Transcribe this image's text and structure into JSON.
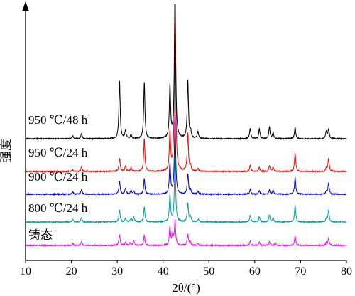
{
  "chart_data": {
    "type": "line",
    "title": "",
    "xlabel": "2θ/(°)",
    "ylabel": "强度",
    "xlim": [
      10,
      80
    ],
    "x_ticks": [
      10,
      20,
      30,
      40,
      50,
      60,
      70,
      80
    ],
    "x_tick_labels": [
      "10",
      "20",
      "30",
      "40",
      "50",
      "60",
      "70",
      "80"
    ],
    "y_ticks": "none",
    "grid": false,
    "legend": "inline labels above each curve (left side)",
    "series": [
      {
        "name": "铸态",
        "color": "#ff00ff",
        "baseline": 0,
        "peaks": [
          [
            20.3,
            0.06
          ],
          [
            22.2,
            0.12
          ],
          [
            30.5,
            0.32
          ],
          [
            31.8,
            0.08
          ],
          [
            32.8,
            0.07
          ],
          [
            33.6,
            0.14
          ],
          [
            35.9,
            0.32
          ],
          [
            41.5,
            0.55
          ],
          [
            42.1,
            0.3
          ],
          [
            42.6,
            0.72
          ],
          [
            45.4,
            0.32
          ],
          [
            45.9,
            0.1
          ],
          [
            47.6,
            0.06
          ],
          [
            59.0,
            0.12
          ],
          [
            61.0,
            0.1
          ],
          [
            63.2,
            0.12
          ],
          [
            64.5,
            0.07
          ],
          [
            68.8,
            0.28
          ],
          [
            75.6,
            0.08
          ],
          [
            76.1,
            0.2
          ]
        ]
      },
      {
        "name": "800 ℃/24 h",
        "color": "#00a0a0",
        "baseline": 1,
        "peaks": [
          [
            20.3,
            0.07
          ],
          [
            22.2,
            0.13
          ],
          [
            30.5,
            0.35
          ],
          [
            31.8,
            0.1
          ],
          [
            33.0,
            0.1
          ],
          [
            33.6,
            0.13
          ],
          [
            35.9,
            0.45
          ],
          [
            41.5,
            0.8
          ],
          [
            42.6,
            1.9
          ],
          [
            45.4,
            0.55
          ],
          [
            46.0,
            0.15
          ],
          [
            47.7,
            0.08
          ],
          [
            59.0,
            0.2
          ],
          [
            61.0,
            0.15
          ],
          [
            63.2,
            0.2
          ],
          [
            64.0,
            0.12
          ],
          [
            68.8,
            0.5
          ],
          [
            75.6,
            0.1
          ],
          [
            76.1,
            0.35
          ]
        ]
      },
      {
        "name": "900 ℃/24 h",
        "color": "#0000d0",
        "baseline": 2,
        "peaks": [
          [
            20.3,
            0.07
          ],
          [
            22.2,
            0.14
          ],
          [
            30.5,
            0.38
          ],
          [
            31.8,
            0.18
          ],
          [
            33.0,
            0.11
          ],
          [
            33.6,
            0.08
          ],
          [
            35.9,
            0.45
          ],
          [
            41.5,
            0.9
          ],
          [
            42.6,
            2.3
          ],
          [
            45.4,
            0.6
          ],
          [
            46.0,
            0.12
          ],
          [
            47.6,
            0.08
          ],
          [
            59.0,
            0.14
          ],
          [
            61.0,
            0.1
          ],
          [
            63.2,
            0.13
          ],
          [
            64.0,
            0.11
          ],
          [
            68.8,
            0.5
          ],
          [
            75.6,
            0.09
          ],
          [
            76.1,
            0.32
          ]
        ]
      },
      {
        "name": "950 ℃/24 h",
        "color": "#ff0000",
        "baseline": 3,
        "peaks": [
          [
            20.3,
            0.05
          ],
          [
            22.2,
            0.14
          ],
          [
            30.5,
            0.38
          ],
          [
            31.8,
            0.16
          ],
          [
            33.0,
            0.12
          ],
          [
            35.9,
            0.95
          ],
          [
            41.5,
            1.15
          ],
          [
            42.6,
            5.1
          ],
          [
            45.4,
            1.1
          ],
          [
            46.0,
            0.15
          ],
          [
            47.6,
            0.08
          ],
          [
            59.0,
            0.18
          ],
          [
            61.0,
            0.12
          ],
          [
            63.2,
            0.18
          ],
          [
            64.0,
            0.13
          ],
          [
            68.8,
            0.55
          ],
          [
            75.6,
            0.1
          ],
          [
            76.1,
            0.38
          ]
        ]
      },
      {
        "name": "950 ℃/48 h",
        "color": "#000000",
        "baseline": 4,
        "peaks": [
          [
            20.3,
            0.08
          ],
          [
            22.2,
            0.16
          ],
          [
            30.5,
            1.7
          ],
          [
            31.8,
            0.24
          ],
          [
            33.0,
            0.12
          ],
          [
            35.9,
            1.65
          ],
          [
            41.5,
            1.55
          ],
          [
            42.6,
            4.6
          ],
          [
            45.4,
            1.7
          ],
          [
            46.0,
            0.2
          ],
          [
            47.6,
            0.2
          ],
          [
            59.0,
            0.31
          ],
          [
            61.0,
            0.28
          ],
          [
            63.2,
            0.34
          ],
          [
            64.0,
            0.18
          ],
          [
            68.8,
            0.34
          ],
          [
            75.6,
            0.22
          ],
          [
            76.1,
            0.28
          ]
        ]
      }
    ]
  }
}
